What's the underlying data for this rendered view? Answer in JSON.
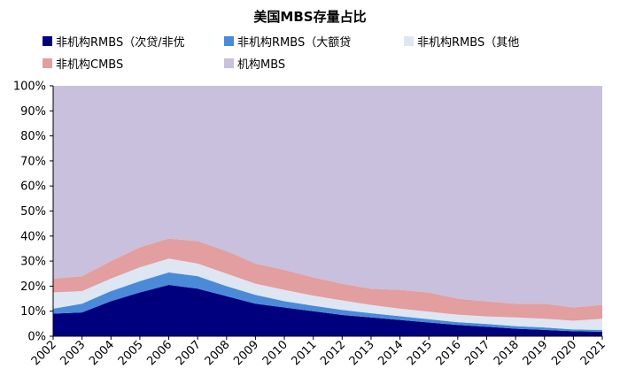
{
  "chart_data": {
    "type": "area",
    "stacked": true,
    "title": "美国MBS存量占比",
    "xlabel": "",
    "ylabel": "",
    "ylim": [
      0,
      100
    ],
    "y_ticks": [
      "0%",
      "10%",
      "20%",
      "30%",
      "40%",
      "50%",
      "60%",
      "70%",
      "80%",
      "90%",
      "100%"
    ],
    "grid": false,
    "legend_position": "top",
    "categories": [
      "2002",
      "2003",
      "2004",
      "2005",
      "2006",
      "2007",
      "2008",
      "2009",
      "2010",
      "2011",
      "2012",
      "2013",
      "2014",
      "2015",
      "2016",
      "2017",
      "2018",
      "2019",
      "2020",
      "2021"
    ],
    "series": [
      {
        "name": "非机构RMBS（次贷/非优",
        "color": "#00007f",
        "values": [
          9,
          9.5,
          14,
          17.5,
          20.5,
          19,
          16,
          13,
          11.5,
          10,
          8.5,
          7.5,
          6.5,
          5.5,
          4.5,
          3.8,
          3,
          2.5,
          2,
          1.8
        ]
      },
      {
        "name": "非机构RMBS（大额贷",
        "color": "#4a8ad8",
        "values": [
          2,
          3.5,
          4,
          4.5,
          5,
          5,
          4,
          3.5,
          2.5,
          2.2,
          2,
          1.7,
          1.5,
          1.3,
          1.1,
          1.1,
          1,
          1,
          0.7,
          0.7
        ]
      },
      {
        "name": "非机构RMBS（其他",
        "color": "#dde6f2",
        "values": [
          6.5,
          5,
          5,
          5.5,
          5.5,
          5,
          5,
          4.5,
          4.5,
          4,
          3.8,
          3.3,
          3,
          3,
          3,
          3,
          3.5,
          3.5,
          3.5,
          4.5
        ]
      },
      {
        "name": "非机构CMBS",
        "color": "#e39ea0",
        "values": [
          5.5,
          6,
          7,
          8,
          8,
          9,
          9,
          8,
          8,
          7.3,
          6.7,
          6.5,
          7.5,
          7.7,
          6.4,
          6,
          5.5,
          6,
          5.3,
          5.5
        ]
      },
      {
        "name": "机构MBS",
        "color": "#c8c0dc",
        "values": [
          77,
          76,
          70,
          64.5,
          61,
          62,
          66,
          71,
          73.5,
          76.5,
          79,
          81,
          81.5,
          82.5,
          85,
          86.1,
          87,
          87,
          88.5,
          87.5
        ]
      }
    ]
  }
}
